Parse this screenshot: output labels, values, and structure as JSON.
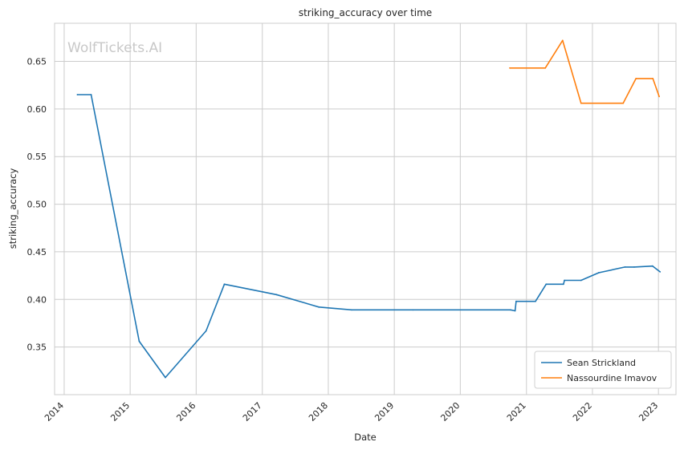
{
  "chart_data": {
    "type": "line",
    "title": "striking_accuracy over time",
    "xlabel": "Date",
    "ylabel": "striking_accuracy",
    "watermark": "WolfTickets.AI",
    "grid": true,
    "legend_position": "bottom-right",
    "xlim": [
      "2013-11-09",
      "2023-04-08"
    ],
    "ylim": [
      0.3,
      0.69
    ],
    "x_ticks": [
      "2014",
      "2015",
      "2016",
      "2017",
      "2018",
      "2019",
      "2020",
      "2021",
      "2022",
      "2023"
    ],
    "y_ticks": [
      0.35,
      0.4,
      0.45,
      0.5,
      0.55,
      0.6,
      0.65
    ],
    "y_tick_labels": [
      "0.35",
      "0.40",
      "0.45",
      "0.50",
      "0.55",
      "0.60",
      "0.65"
    ],
    "series": [
      {
        "name": "Sean Strickland",
        "color": "#1f77b4",
        "points": [
          [
            "2014-03-15",
            0.615
          ],
          [
            "2014-05-30",
            0.615
          ],
          [
            "2015-02-20",
            0.356
          ],
          [
            "2015-07-15",
            0.318
          ],
          [
            "2016-02-25",
            0.367
          ],
          [
            "2016-06-05",
            0.416
          ],
          [
            "2017-03-20",
            0.405
          ],
          [
            "2017-11-10",
            0.392
          ],
          [
            "2018-05-10",
            0.389
          ],
          [
            "2019-04-15",
            0.389
          ],
          [
            "2020-10-05",
            0.389
          ],
          [
            "2020-10-30",
            0.388
          ],
          [
            "2020-11-05",
            0.398
          ],
          [
            "2021-02-20",
            0.398
          ],
          [
            "2021-04-20",
            0.416
          ],
          [
            "2021-07-25",
            0.416
          ],
          [
            "2021-07-30",
            0.42
          ],
          [
            "2021-10-30",
            0.42
          ],
          [
            "2022-02-05",
            0.428
          ],
          [
            "2022-06-30",
            0.434
          ],
          [
            "2022-08-20",
            0.434
          ],
          [
            "2022-11-30",
            0.435
          ],
          [
            "2023-01-10",
            0.429
          ]
        ]
      },
      {
        "name": "Nassourdine Imavov",
        "color": "#ff7f0e",
        "points": [
          [
            "2020-10-01",
            0.643
          ],
          [
            "2021-04-15",
            0.643
          ],
          [
            "2021-07-20",
            0.672
          ],
          [
            "2021-10-30",
            0.606
          ],
          [
            "2022-06-20",
            0.606
          ],
          [
            "2022-08-30",
            0.632
          ],
          [
            "2022-12-01",
            0.632
          ],
          [
            "2023-01-05",
            0.613
          ]
        ]
      }
    ]
  }
}
